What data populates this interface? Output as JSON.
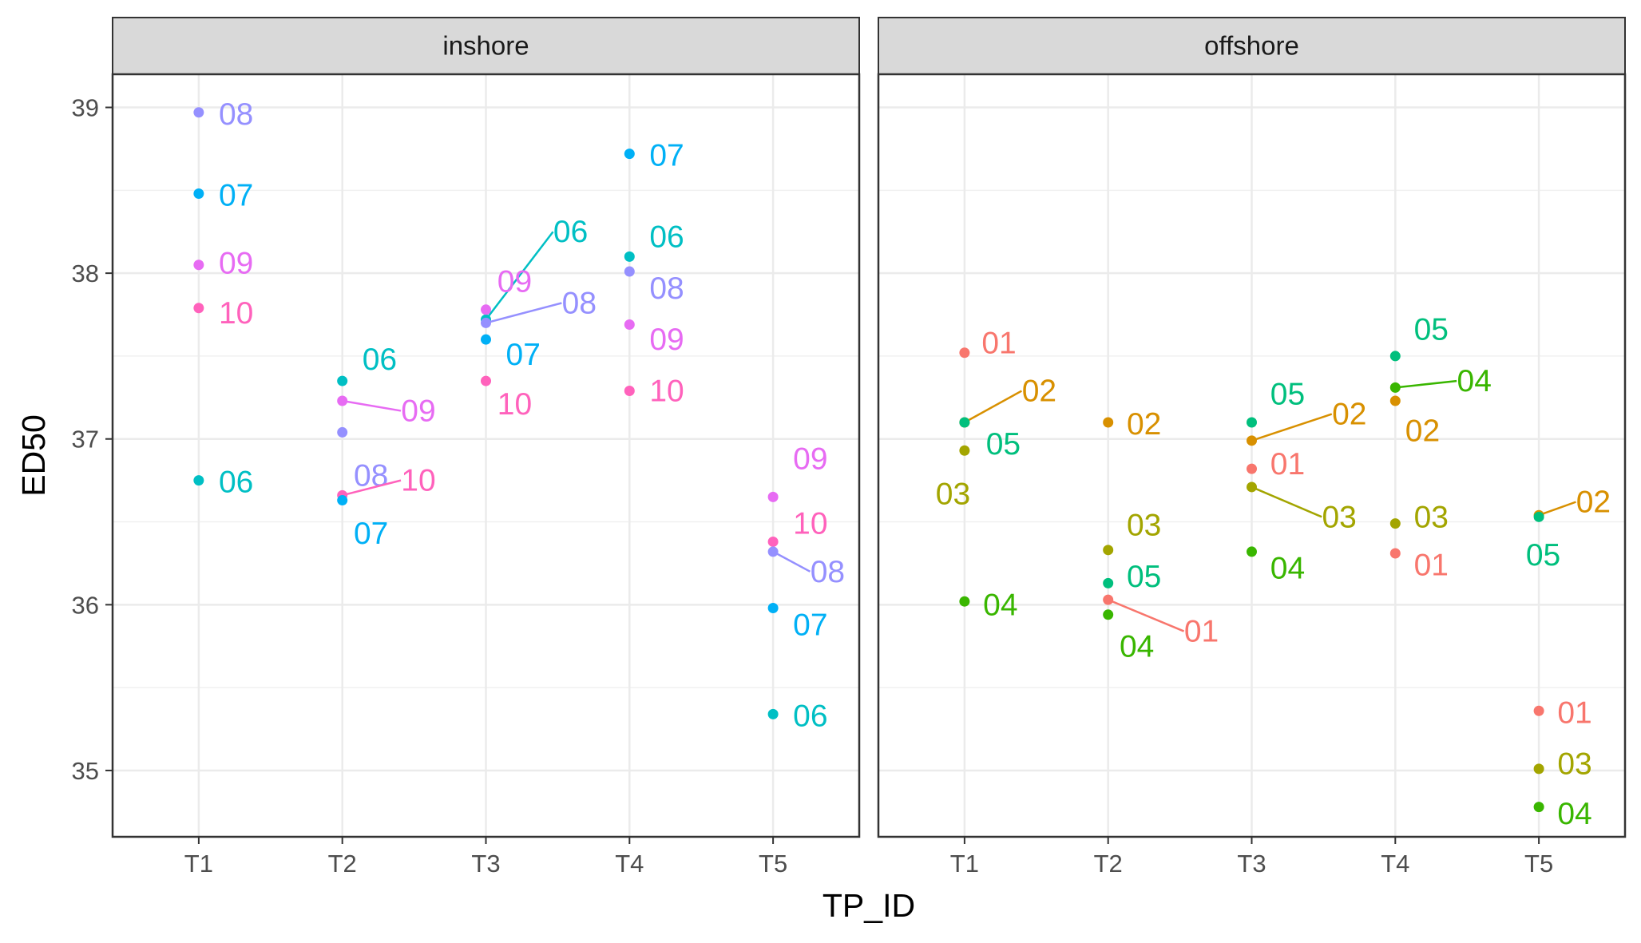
{
  "chart_data": {
    "type": "scatter",
    "xlabel": "TP_ID",
    "ylabel": "ED50",
    "categories": [
      "T1",
      "T2",
      "T3",
      "T4",
      "T5"
    ],
    "ylim": [
      34.6,
      39.2
    ],
    "yticks": [
      35,
      36,
      37,
      38,
      39
    ],
    "grid": true,
    "legend": "none",
    "colors": {
      "01": "#F8766D",
      "02": "#D89000",
      "03": "#A3A500",
      "04": "#39B600",
      "05": "#00BF7D",
      "06": "#00BFC4",
      "07": "#00B0F6",
      "08": "#9590FF",
      "09": "#E76BF3",
      "10": "#FF62BC"
    },
    "panels": [
      {
        "title": "inshore",
        "points": [
          {
            "id": "08",
            "x": "T1",
            "y": 38.97,
            "lx": 0.26,
            "ly": 38.96
          },
          {
            "id": "07",
            "x": "T1",
            "y": 38.48,
            "lx": 0.26,
            "ly": 38.47
          },
          {
            "id": "09",
            "x": "T1",
            "y": 38.05,
            "lx": 0.26,
            "ly": 38.06
          },
          {
            "id": "10",
            "x": "T1",
            "y": 37.79,
            "lx": 0.26,
            "ly": 37.76
          },
          {
            "id": "06",
            "x": "T1",
            "y": 36.75,
            "lx": 0.26,
            "ly": 36.74
          },
          {
            "id": "06",
            "x": "T2",
            "y": 37.35,
            "lx": 0.26,
            "ly": 37.48
          },
          {
            "id": "09",
            "x": "T2",
            "y": 37.23,
            "lx": 0.53,
            "ly": 37.17,
            "line": true
          },
          {
            "id": "08",
            "x": "T2",
            "y": 37.04,
            "lx": 0.2,
            "ly": 36.78
          },
          {
            "id": "10",
            "x": "T2",
            "y": 36.66,
            "lx": 0.53,
            "ly": 36.75,
            "line": true
          },
          {
            "id": "07",
            "x": "T2",
            "y": 36.63,
            "lx": 0.2,
            "ly": 36.43
          },
          {
            "id": "06",
            "x": "T3",
            "y": 37.72,
            "lx": 0.59,
            "ly": 38.25,
            "line": true
          },
          {
            "id": "09",
            "x": "T3",
            "y": 37.78,
            "lx": 0.2,
            "ly": 37.95
          },
          {
            "id": "08",
            "x": "T3",
            "y": 37.7,
            "lx": 0.65,
            "ly": 37.82,
            "line": true
          },
          {
            "id": "07",
            "x": "T3",
            "y": 37.6,
            "lx": 0.26,
            "ly": 37.51
          },
          {
            "id": "10",
            "x": "T3",
            "y": 37.35,
            "lx": 0.2,
            "ly": 37.21
          },
          {
            "id": "07",
            "x": "T4",
            "y": 38.72,
            "lx": 0.26,
            "ly": 38.71
          },
          {
            "id": "06",
            "x": "T4",
            "y": 38.1,
            "lx": 0.26,
            "ly": 38.22
          },
          {
            "id": "08",
            "x": "T4",
            "y": 38.01,
            "lx": 0.26,
            "ly": 37.91
          },
          {
            "id": "09",
            "x": "T4",
            "y": 37.69,
            "lx": 0.26,
            "ly": 37.6
          },
          {
            "id": "10",
            "x": "T4",
            "y": 37.29,
            "lx": 0.26,
            "ly": 37.29
          },
          {
            "id": "09",
            "x": "T5",
            "y": 36.65,
            "lx": 0.26,
            "ly": 36.88
          },
          {
            "id": "10",
            "x": "T5",
            "y": 36.38,
            "lx": 0.26,
            "ly": 36.49
          },
          {
            "id": "08",
            "x": "T5",
            "y": 36.32,
            "lx": 0.38,
            "ly": 36.2,
            "line": true
          },
          {
            "id": "07",
            "x": "T5",
            "y": 35.98,
            "lx": 0.26,
            "ly": 35.88
          },
          {
            "id": "06",
            "x": "T5",
            "y": 35.34,
            "lx": 0.26,
            "ly": 35.33
          }
        ]
      },
      {
        "title": "offshore",
        "points": [
          {
            "id": "01",
            "x": "T1",
            "y": 37.52,
            "lx": 0.24,
            "ly": 37.58
          },
          {
            "id": "02",
            "x": "T1",
            "y": 37.1,
            "lx": 0.52,
            "ly": 37.29,
            "line": true
          },
          {
            "id": "05",
            "x": "T1",
            "y": 37.1,
            "lx": 0.27,
            "ly": 36.97
          },
          {
            "id": "03",
            "x": "T1",
            "y": 36.93,
            "lx": -0.08,
            "ly": 36.67
          },
          {
            "id": "04",
            "x": "T1",
            "y": 36.02,
            "lx": 0.25,
            "ly": 36.0
          },
          {
            "id": "02",
            "x": "T2",
            "y": 37.1,
            "lx": 0.25,
            "ly": 37.09
          },
          {
            "id": "03",
            "x": "T2",
            "y": 36.33,
            "lx": 0.25,
            "ly": 36.48
          },
          {
            "id": "05",
            "x": "T2",
            "y": 36.13,
            "lx": 0.25,
            "ly": 36.17
          },
          {
            "id": "01",
            "x": "T2",
            "y": 36.03,
            "lx": 0.65,
            "ly": 35.84,
            "line": true
          },
          {
            "id": "04",
            "x": "T2",
            "y": 35.94,
            "lx": 0.2,
            "ly": 35.75
          },
          {
            "id": "05",
            "x": "T3",
            "y": 37.1,
            "lx": 0.25,
            "ly": 37.27
          },
          {
            "id": "02",
            "x": "T3",
            "y": 36.99,
            "lx": 0.68,
            "ly": 37.15,
            "line": true
          },
          {
            "id": "01",
            "x": "T3",
            "y": 36.82,
            "lx": 0.25,
            "ly": 36.85
          },
          {
            "id": "03",
            "x": "T3",
            "y": 36.71,
            "lx": 0.61,
            "ly": 36.53,
            "line": true
          },
          {
            "id": "04",
            "x": "T3",
            "y": 36.32,
            "lx": 0.25,
            "ly": 36.22
          },
          {
            "id": "05",
            "x": "T4",
            "y": 37.5,
            "lx": 0.25,
            "ly": 37.66
          },
          {
            "id": "04",
            "x": "T4",
            "y": 37.31,
            "lx": 0.55,
            "ly": 37.35,
            "line": true
          },
          {
            "id": "02",
            "x": "T4",
            "y": 37.23,
            "lx": 0.19,
            "ly": 37.05
          },
          {
            "id": "03",
            "x": "T4",
            "y": 36.49,
            "lx": 0.25,
            "ly": 36.53
          },
          {
            "id": "01",
            "x": "T4",
            "y": 36.31,
            "lx": 0.25,
            "ly": 36.24
          },
          {
            "id": "02",
            "x": "T5",
            "y": 36.54,
            "lx": 0.38,
            "ly": 36.62,
            "line": true
          },
          {
            "id": "05",
            "x": "T5",
            "y": 36.53,
            "lx": 0.03,
            "ly": 36.3
          },
          {
            "id": "01",
            "x": "T5",
            "y": 35.36,
            "lx": 0.25,
            "ly": 35.35
          },
          {
            "id": "03",
            "x": "T5",
            "y": 35.01,
            "lx": 0.25,
            "ly": 35.04
          },
          {
            "id": "04",
            "x": "T5",
            "y": 34.78,
            "lx": 0.25,
            "ly": 34.74
          }
        ]
      }
    ]
  }
}
